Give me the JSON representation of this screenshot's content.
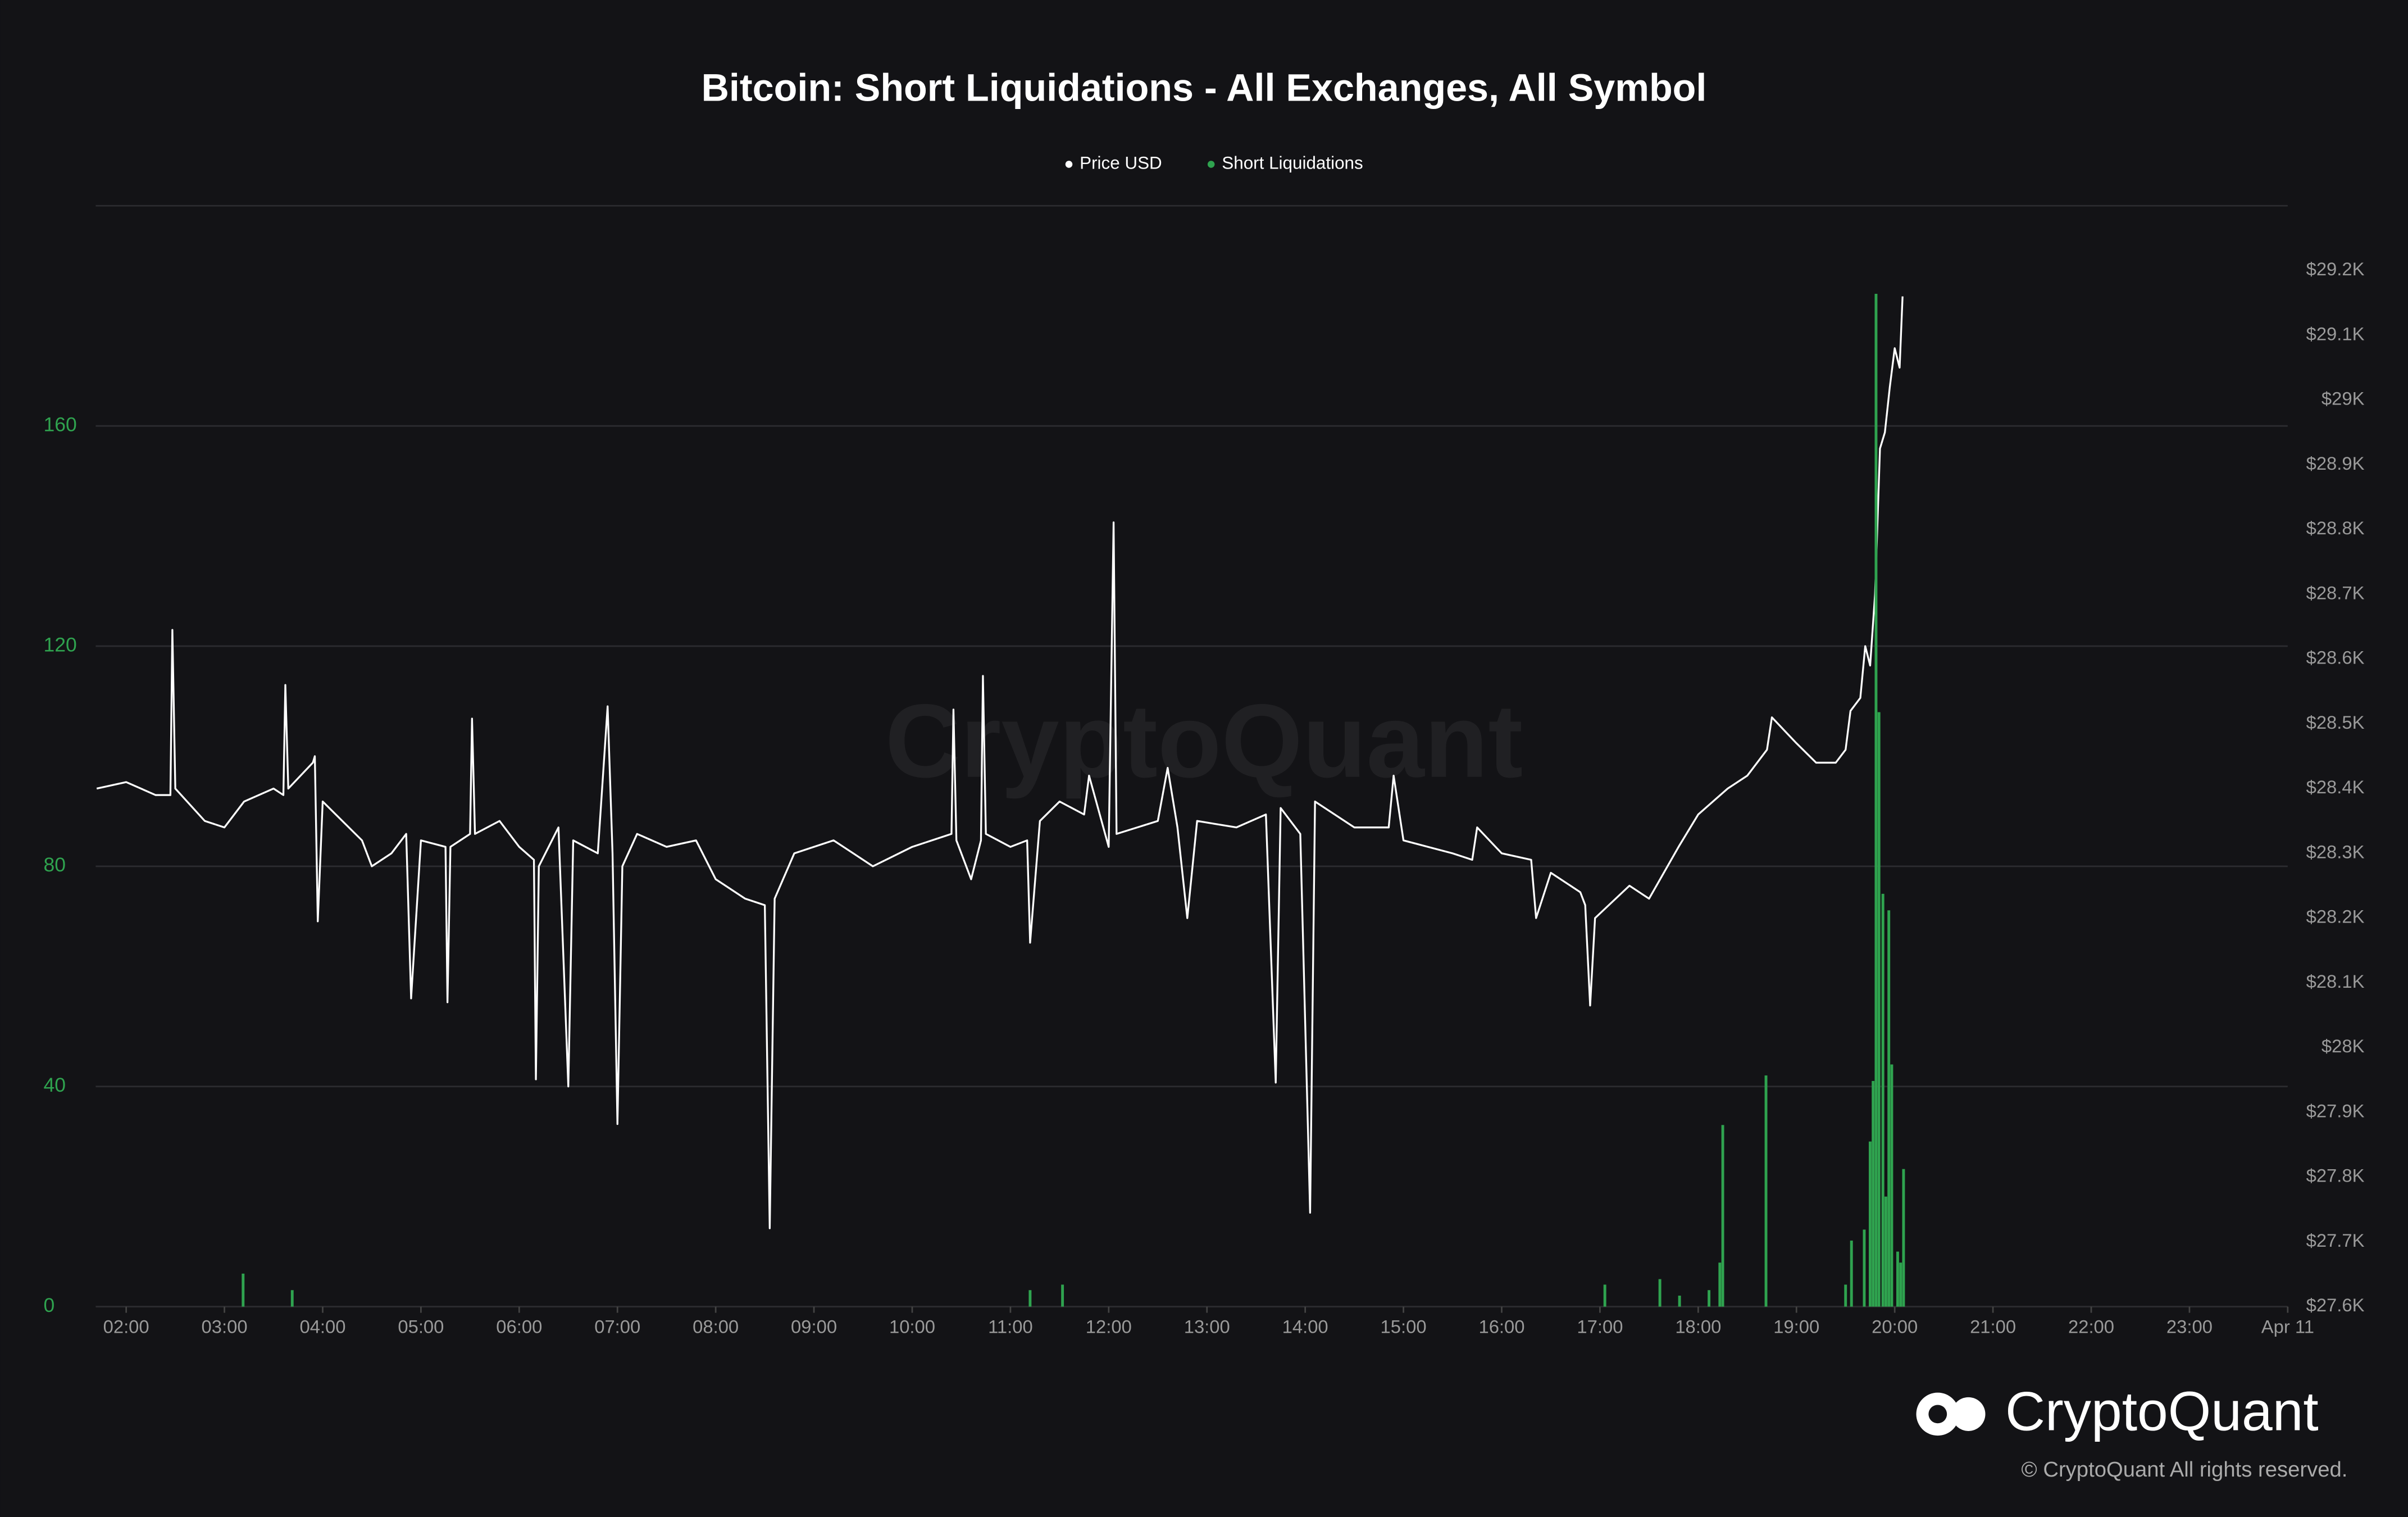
{
  "chart_data": {
    "type": "line-bar",
    "title": "Bitcoin: Short Liquidations - All Exchanges, All Symbol",
    "watermark": "CryptoQuant",
    "brand": "CryptoQuant",
    "copyright": "© CryptoQuant All rights reserved.",
    "legend": "top",
    "grid": true,
    "xlim": [
      1.69,
      24
    ],
    "xticks": [
      {
        "value": 2,
        "label": "02:00"
      },
      {
        "value": 3,
        "label": "03:00"
      },
      {
        "value": 4,
        "label": "04:00"
      },
      {
        "value": 5,
        "label": "05:00"
      },
      {
        "value": 6,
        "label": "06:00"
      },
      {
        "value": 7,
        "label": "07:00"
      },
      {
        "value": 8,
        "label": "08:00"
      },
      {
        "value": 9,
        "label": "09:00"
      },
      {
        "value": 10,
        "label": "10:00"
      },
      {
        "value": 11,
        "label": "11:00"
      },
      {
        "value": 12,
        "label": "12:00"
      },
      {
        "value": 13,
        "label": "13:00"
      },
      {
        "value": 14,
        "label": "14:00"
      },
      {
        "value": 15,
        "label": "15:00"
      },
      {
        "value": 16,
        "label": "16:00"
      },
      {
        "value": 17,
        "label": "17:00"
      },
      {
        "value": 18,
        "label": "18:00"
      },
      {
        "value": 19,
        "label": "19:00"
      },
      {
        "value": 20,
        "label": "20:00"
      },
      {
        "value": 21,
        "label": "21:00"
      },
      {
        "value": 22,
        "label": "22:00"
      },
      {
        "value": 23,
        "label": "23:00"
      },
      {
        "value": 24,
        "label": "Apr 11"
      }
    ],
    "ylim": [
      0,
      200
    ],
    "yticks": [
      0,
      40,
      80,
      120,
      160
    ],
    "y2lim": [
      27600,
      29300
    ],
    "y2ticks": [
      {
        "value": 27600,
        "label": "$27.6K"
      },
      {
        "value": 27700,
        "label": "$27.7K"
      },
      {
        "value": 27800,
        "label": "$27.8K"
      },
      {
        "value": 27900,
        "label": "$27.9K"
      },
      {
        "value": 28000,
        "label": "$28K"
      },
      {
        "value": 28100,
        "label": "$28.1K"
      },
      {
        "value": 28200,
        "label": "$28.2K"
      },
      {
        "value": 28300,
        "label": "$28.3K"
      },
      {
        "value": 28400,
        "label": "$28.4K"
      },
      {
        "value": 28500,
        "label": "$28.5K"
      },
      {
        "value": 28600,
        "label": "$28.6K"
      },
      {
        "value": 28700,
        "label": "$28.7K"
      },
      {
        "value": 28800,
        "label": "$28.8K"
      },
      {
        "value": 28900,
        "label": "$28.9K"
      },
      {
        "value": 29000,
        "label": "$29K"
      },
      {
        "value": 29100,
        "label": "$29.1K"
      },
      {
        "value": 29200,
        "label": "$29.2K"
      }
    ],
    "series": [
      {
        "name": "Price USD",
        "color": "#ffffff",
        "axis": "y2",
        "kind": "line",
        "x": [
          1.7,
          2.0,
          2.3,
          2.45,
          2.47,
          2.5,
          2.8,
          3.0,
          3.2,
          3.5,
          3.6,
          3.62,
          3.65,
          3.9,
          3.92,
          3.95,
          4.0,
          4.4,
          4.5,
          4.7,
          4.85,
          4.9,
          5.0,
          5.25,
          5.27,
          5.3,
          5.5,
          5.52,
          5.55,
          5.8,
          6.0,
          6.15,
          6.17,
          6.2,
          6.4,
          6.5,
          6.55,
          6.8,
          6.9,
          6.95,
          7.0,
          7.05,
          7.2,
          7.5,
          7.8,
          8.0,
          8.3,
          8.5,
          8.55,
          8.6,
          8.8,
          9.2,
          9.6,
          10.0,
          10.4,
          10.42,
          10.45,
          10.6,
          10.7,
          10.72,
          10.75,
          11.0,
          11.17,
          11.2,
          11.3,
          11.5,
          11.75,
          11.8,
          12.0,
          12.05,
          12.08,
          12.5,
          12.6,
          12.7,
          12.8,
          12.9,
          13.3,
          13.6,
          13.7,
          13.75,
          13.95,
          14.05,
          14.1,
          14.5,
          14.85,
          14.9,
          15.0,
          15.5,
          15.7,
          15.75,
          16.0,
          16.3,
          16.35,
          16.5,
          16.8,
          16.85,
          16.9,
          16.95,
          17.3,
          17.5,
          17.8,
          18.0,
          18.3,
          18.5,
          18.7,
          18.75,
          19.0,
          19.2,
          19.4,
          19.5,
          19.55,
          19.65,
          19.7,
          19.75,
          19.8,
          19.85,
          19.9,
          19.95,
          20.0,
          20.05,
          20.08
        ],
        "values": [
          28400,
          28410,
          28390,
          28390,
          28645,
          28400,
          28350,
          28340,
          28380,
          28400,
          28390,
          28560,
          28400,
          28440,
          28450,
          28195,
          28380,
          28320,
          28280,
          28300,
          28330,
          28076,
          28320,
          28310,
          28070,
          28310,
          28330,
          28508,
          28330,
          28350,
          28310,
          28290,
          27951,
          28280,
          28340,
          27940,
          28320,
          28300,
          28527,
          28300,
          27882,
          28280,
          28330,
          28310,
          28320,
          28260,
          28230,
          28220,
          27721,
          28230,
          28300,
          28320,
          28280,
          28310,
          28330,
          28522,
          28320,
          28260,
          28320,
          28574,
          28330,
          28310,
          28320,
          28162,
          28350,
          28380,
          28360,
          28420,
          28310,
          28811,
          28330,
          28350,
          28432,
          28340,
          28200,
          28350,
          28340,
          28360,
          27946,
          28370,
          28330,
          27745,
          28380,
          28340,
          28340,
          28420,
          28320,
          28300,
          28290,
          28340,
          28300,
          28290,
          28200,
          28270,
          28240,
          28220,
          28065,
          28200,
          28250,
          28230,
          28310,
          28360,
          28400,
          28420,
          28460,
          28510,
          28470,
          28440,
          28440,
          28460,
          28520,
          28540,
          28620,
          28590,
          28700,
          28925,
          28950,
          29020,
          29080,
          29050,
          29160
        ]
      },
      {
        "name": "Short Liquidations",
        "color": "#2fa34f",
        "axis": "y",
        "kind": "bar",
        "x": [
          3.19,
          3.69,
          11.2,
          11.53,
          17.05,
          17.61,
          17.81,
          18.11,
          18.22,
          18.25,
          18.69,
          19.5,
          19.56,
          19.69,
          19.75,
          19.78,
          19.81,
          19.84,
          19.88,
          19.91,
          19.94,
          19.97,
          20.03,
          20.06,
          20.09
        ],
        "values": [
          6,
          3,
          3,
          4,
          4,
          5,
          2,
          3,
          8,
          33,
          42,
          4,
          12,
          14,
          30,
          41,
          184,
          108,
          75,
          20,
          72,
          44,
          10,
          8,
          25
        ]
      }
    ]
  }
}
